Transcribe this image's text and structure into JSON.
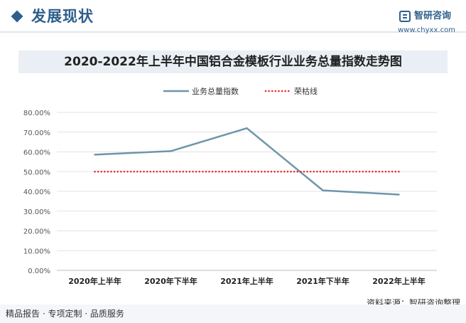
{
  "header": {
    "section_title": "发展现状",
    "logo_name": "智研咨询",
    "logo_url": "www.chyxx.com"
  },
  "colors": {
    "brand": "#2e5f8c",
    "series_line": "#6e95ab",
    "reference_line": "#e8262a",
    "title_bar": "#e9eff4"
  },
  "chart_data": {
    "type": "line",
    "title": "2020-2022年上半年中国铝合金模板行业业务总量指数走势图",
    "categories": [
      "2020年上半年",
      "2020年下半年",
      "2021年上半年",
      "2021年下半年",
      "2022年上半年"
    ],
    "series": [
      {
        "name": "业务总量指数",
        "values": [
          58.6,
          60.4,
          72.0,
          40.5,
          38.4
        ],
        "style": "solid"
      },
      {
        "name": "荣枯线",
        "values": [
          50,
          50,
          50,
          50,
          50
        ],
        "style": "dotted"
      }
    ],
    "yticks": [
      "0.00%",
      "10.00%",
      "20.00%",
      "30.00%",
      "40.00%",
      "50.00%",
      "60.00%",
      "70.00%",
      "80.00%"
    ],
    "ylim": [
      0,
      80
    ],
    "grid": true,
    "legend_position": "top-center"
  },
  "footer": {
    "left_text": "精品报告 · 专项定制 · 品质服务",
    "source_text": "资料来源：智研咨询整理"
  }
}
